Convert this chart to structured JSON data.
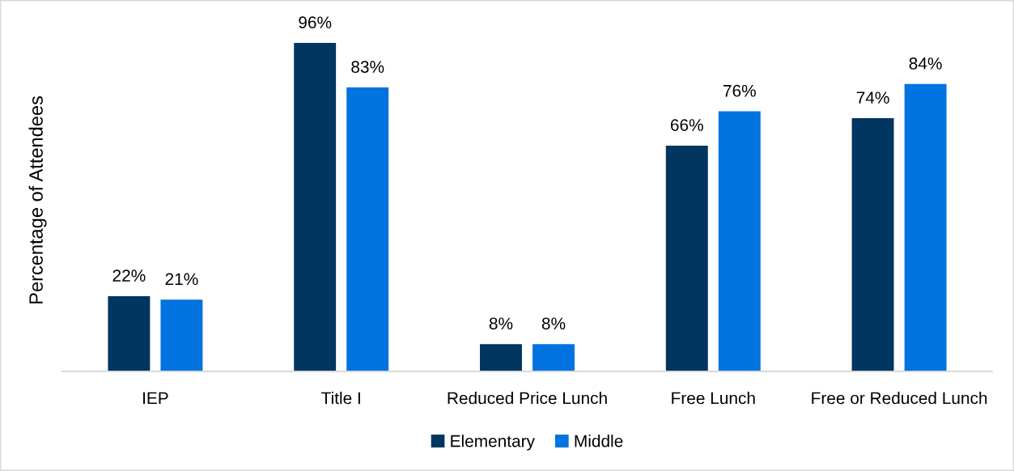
{
  "chart_data": {
    "type": "bar",
    "ylabel": "Percentage of Attendees",
    "categories": [
      "IEP",
      "Title I",
      "Reduced Price Lunch",
      "Free Lunch",
      "Free or Reduced Lunch"
    ],
    "series": [
      {
        "name": "Elementary",
        "color": "#003660",
        "values": [
          22,
          96,
          8,
          66,
          74
        ],
        "value_labels": [
          "22%",
          "96%",
          "8%",
          "66%",
          "74%"
        ]
      },
      {
        "name": "Middle",
        "color": "#0073e0",
        "values": [
          21,
          83,
          8,
          76,
          84
        ],
        "value_labels": [
          "21%",
          "83%",
          "8%",
          "76%",
          "84%"
        ]
      }
    ],
    "tick_labels": "x",
    "legend": "bottom"
  }
}
